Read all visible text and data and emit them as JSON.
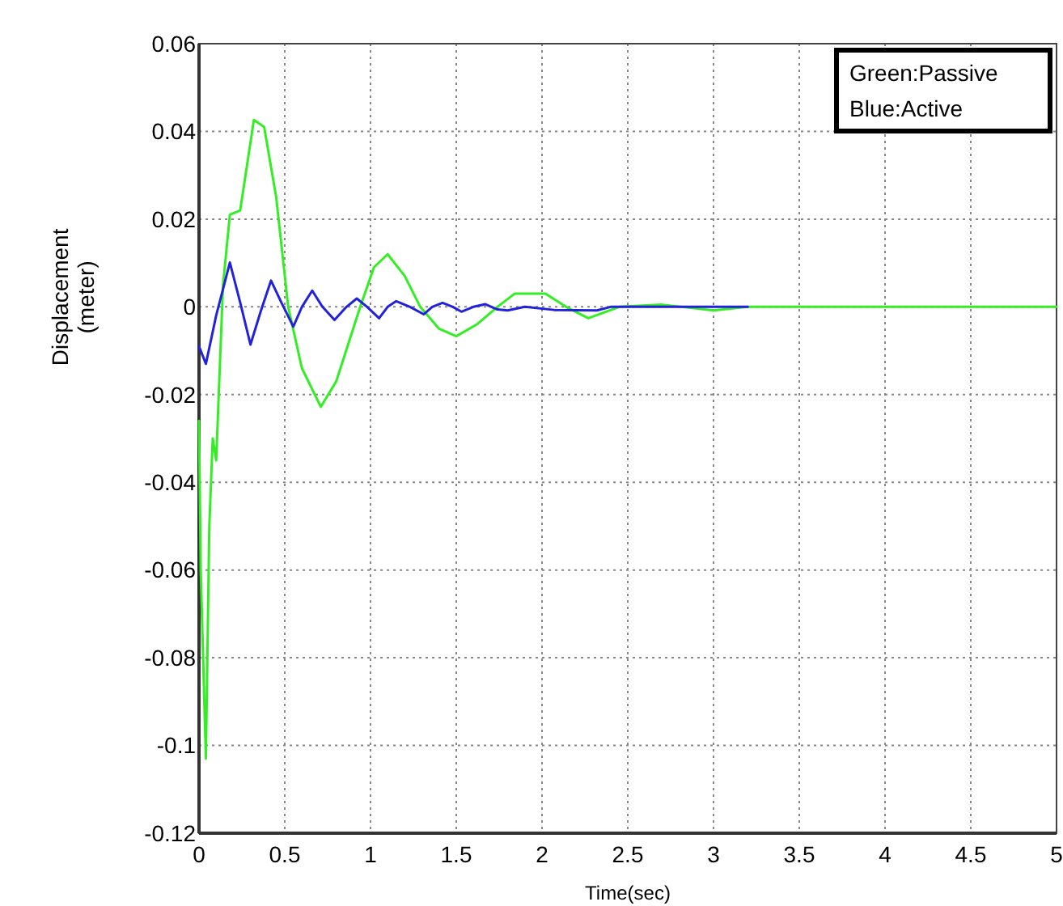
{
  "chart_data": {
    "type": "line",
    "xlabel": "Time(sec)",
    "ylabel": "Displacement\n(meter)",
    "xlim": [
      0,
      5
    ],
    "ylim": [
      -0.12,
      0.06
    ],
    "xticks": [
      0,
      0.5,
      1,
      1.5,
      2,
      2.5,
      3,
      3.5,
      4,
      4.5,
      5
    ],
    "yticks": [
      -0.12,
      -0.1,
      -0.08,
      -0.06,
      -0.04,
      -0.02,
      0,
      0.02,
      0.04,
      0.06
    ],
    "grid": true,
    "line_style": "solid",
    "marker": "none",
    "annotations": [
      "Green:Passive",
      "Blue:Active"
    ],
    "series": [
      {
        "color": "#33ee22",
        "x": [
          0,
          0.01,
          0.04,
          0.06,
          0.08,
          0.1,
          0.12,
          0.14,
          0.18,
          0.24,
          0.32,
          0.38,
          0.45,
          0.52,
          0.6,
          0.71,
          0.8,
          0.94,
          1.02,
          1.1,
          1.2,
          1.29,
          1.4,
          1.5,
          1.62,
          1.74,
          1.84,
          2.02,
          2.14,
          2.27,
          2.45,
          2.7,
          3.0,
          3.2,
          5
        ],
        "values": [
          -0.026,
          -0.06,
          -0.103,
          -0.05,
          -0.03,
          -0.035,
          -0.015,
          0.005,
          0.021,
          0.022,
          0.0426,
          0.041,
          0.025,
          0,
          -0.014,
          -0.0228,
          -0.017,
          0,
          0.009,
          0.012,
          0.007,
          0,
          -0.005,
          -0.0067,
          -0.004,
          0,
          0.003,
          0.003,
          0,
          -0.0026,
          0,
          0.0005,
          -0.0008,
          0,
          0
        ]
      },
      {
        "color": "#2222dd",
        "x": [
          0,
          0.04,
          0.1,
          0.18,
          0.24,
          0.3,
          0.36,
          0.42,
          0.48,
          0.55,
          0.6,
          0.66,
          0.72,
          0.79,
          0.86,
          0.92,
          0.98,
          1.05,
          1.1,
          1.15,
          1.23,
          1.31,
          1.36,
          1.42,
          1.48,
          1.53,
          1.6,
          1.67,
          1.74,
          1.8,
          1.9,
          2.07,
          2.32,
          2.4,
          2.7,
          3.2
        ],
        "values": [
          -0.009,
          -0.013,
          -0.002,
          0.0101,
          0.001,
          -0.0086,
          -0.001,
          0.006,
          0.001,
          -0.0045,
          0,
          0.0037,
          0,
          -0.003,
          0,
          0.0019,
          0,
          -0.0026,
          0,
          0.0013,
          0,
          -0.0017,
          0,
          0.0009,
          0,
          -0.0011,
          0,
          0.0006,
          -0.0006,
          -0.0008,
          0,
          -0.0007,
          -0.0008,
          0,
          0,
          0
        ]
      }
    ]
  }
}
